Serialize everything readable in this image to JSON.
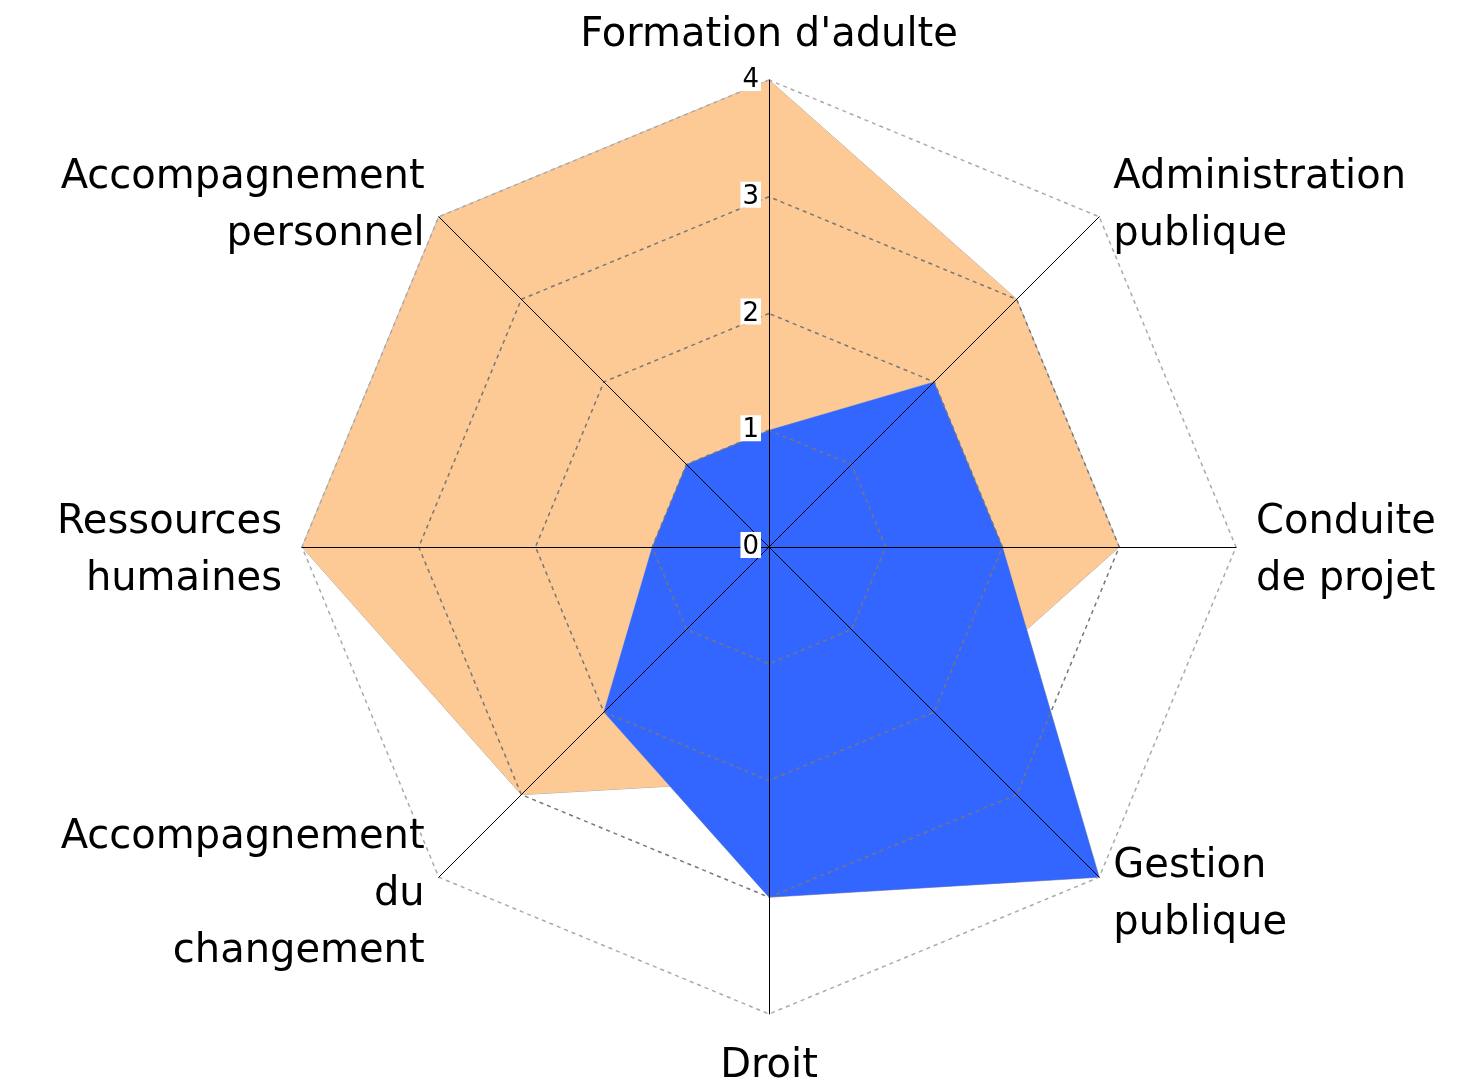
{
  "chart_data": {
    "type": "radar",
    "categories": [
      "Formation d'adulte",
      "Administration\npublique",
      "Conduite\nde projet",
      "Gestion\npublique",
      "Droit",
      "Accompagnement\ndu\nchangement",
      "Ressources\nhumaines",
      "Accompagnement\npersonnel"
    ],
    "series": [
      {
        "color": "#fdca96",
        "values": [
          4,
          3,
          3,
          2,
          2,
          3,
          4,
          4
        ]
      },
      {
        "color": "#3366ff",
        "values": [
          1,
          2,
          2,
          4,
          3,
          2,
          1,
          1
        ]
      }
    ],
    "ylim": [
      0,
      4
    ],
    "yticks": [
      0,
      1,
      2,
      3,
      4
    ],
    "grid": true,
    "marker": "none"
  }
}
